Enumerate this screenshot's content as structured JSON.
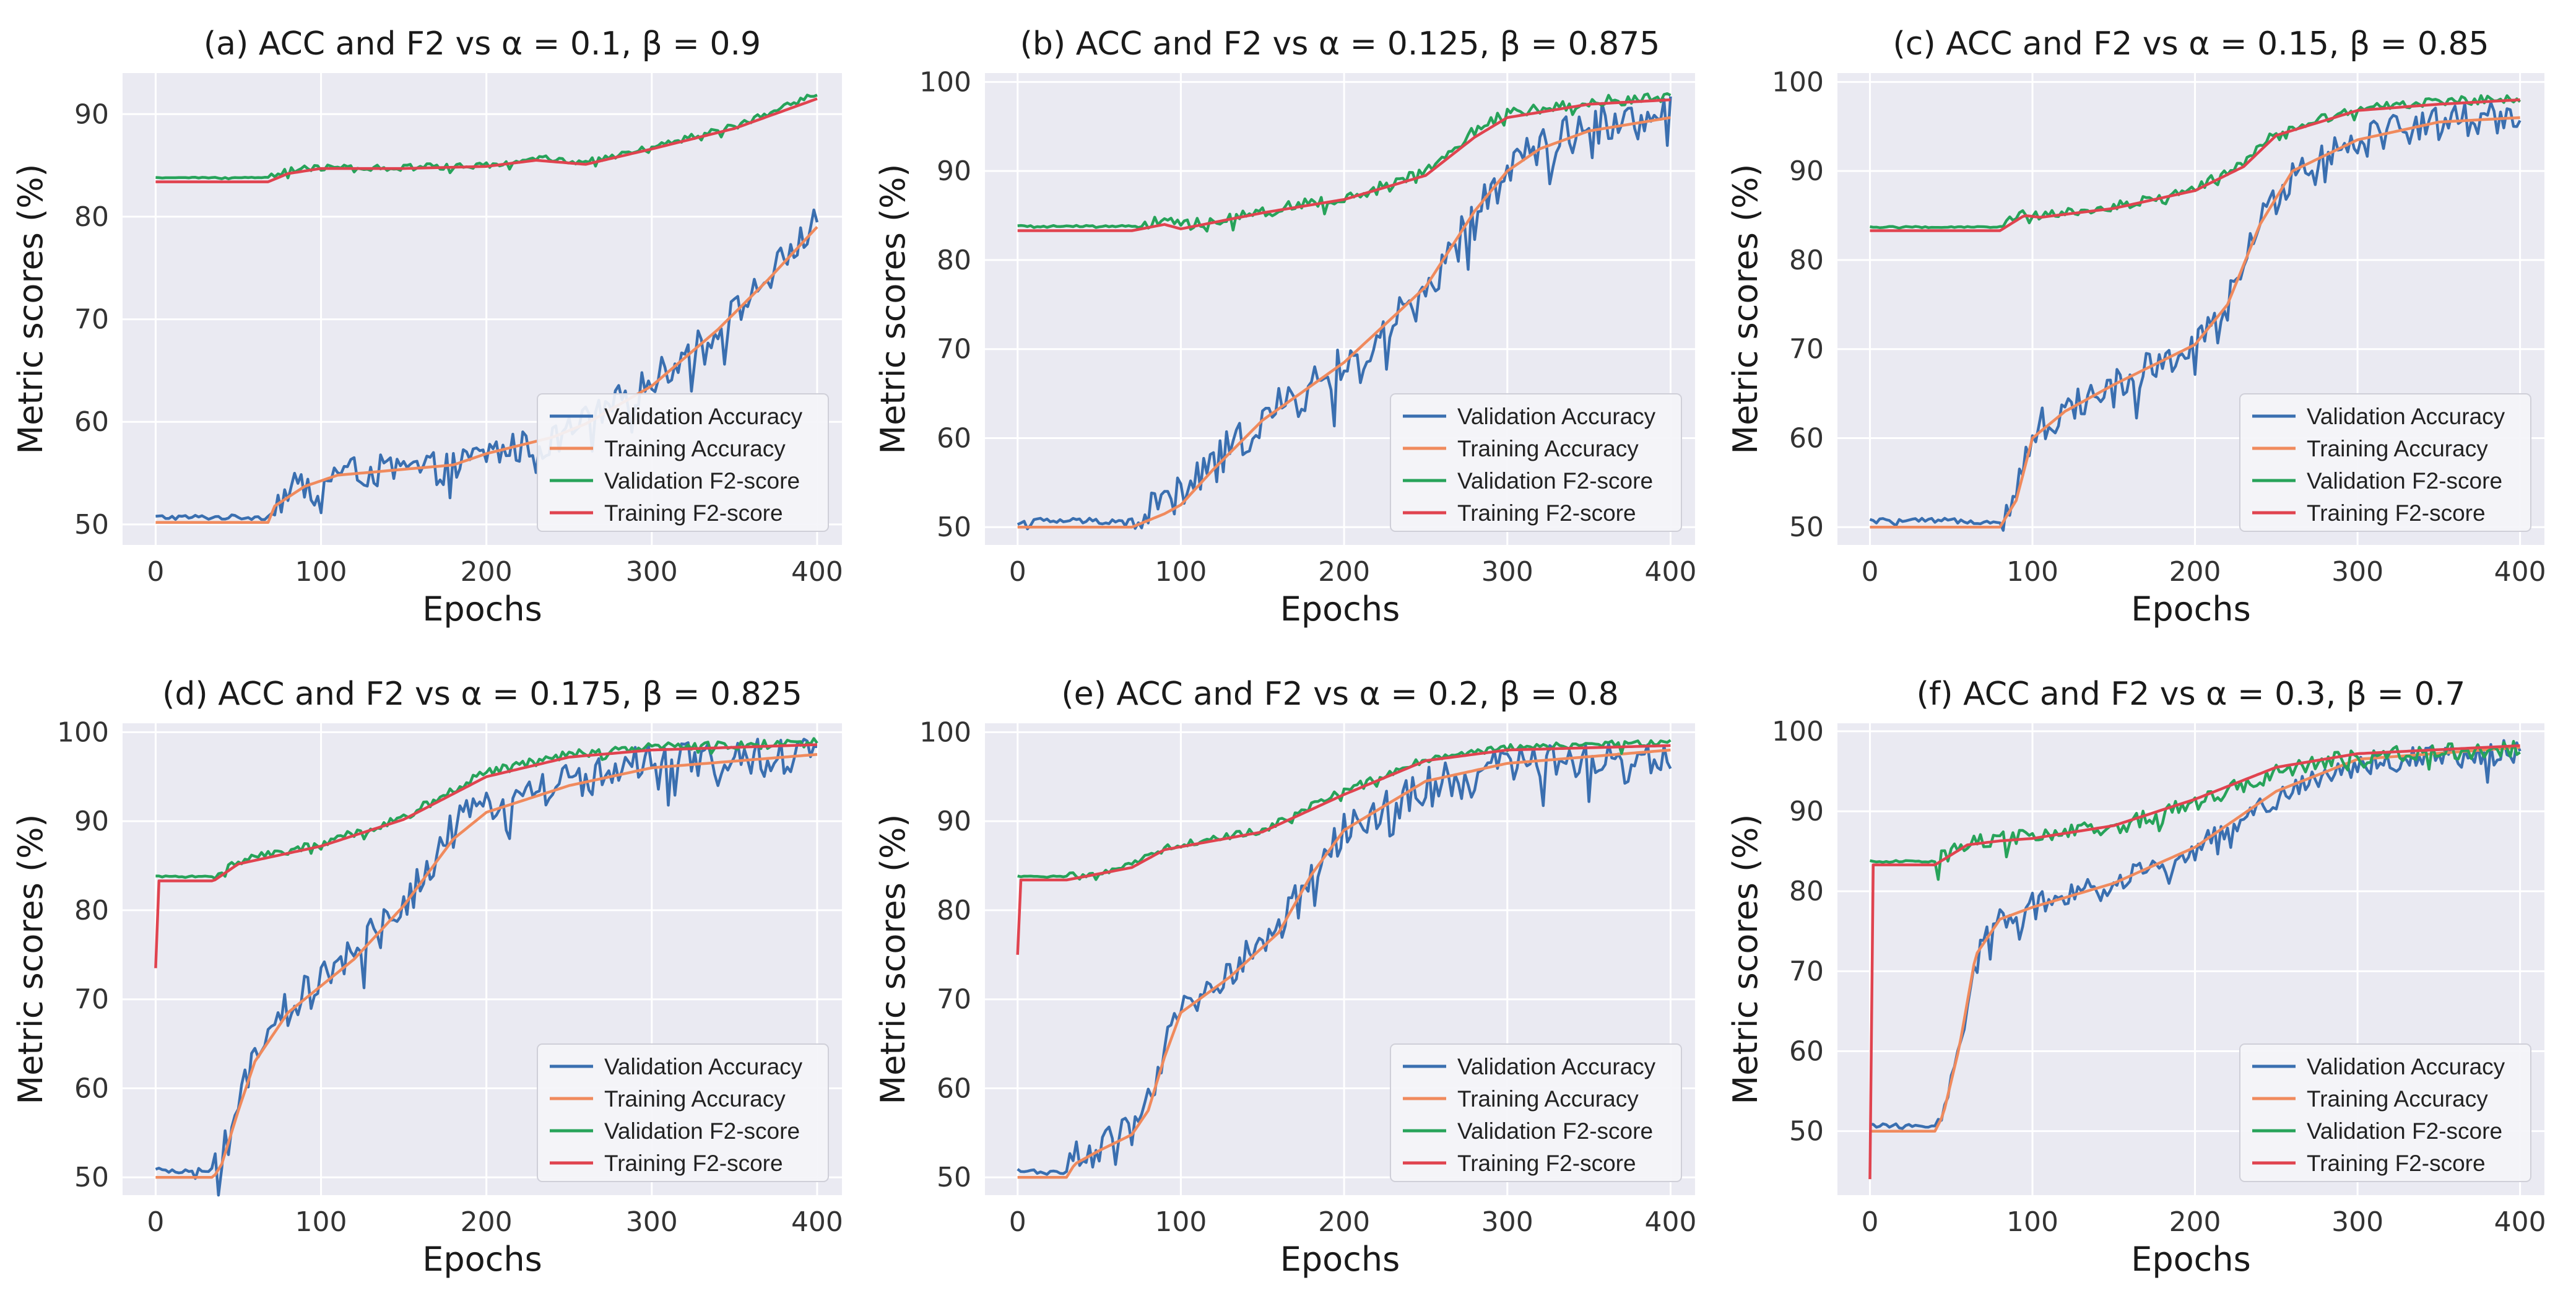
{
  "colors": {
    "val_acc": "#3a6fb0",
    "train_acc": "#f08a5d",
    "val_f2": "#27a35a",
    "train_f2": "#e0434f",
    "panel_bg": "#eaeaf2",
    "grid": "#ffffff"
  },
  "chart_data": [
    {
      "type": "line",
      "title": "(a) ACC and F2 vs α = 0.1, β = 0.9",
      "xlabel": "Epochs",
      "ylabel": "Metric scores (%)",
      "xlim": [
        -20,
        415
      ],
      "ylim": [
        48,
        94
      ],
      "xticks": [
        0,
        100,
        200,
        300,
        400
      ],
      "yticks": [
        50,
        60,
        70,
        80,
        90
      ],
      "grid": true,
      "legend": "lower-right",
      "series": [
        {
          "name": "Validation Accuracy",
          "key": "val_acc",
          "noise": 1.6,
          "x": [
            0,
            68,
            72,
            90,
            110,
            180,
            200,
            240,
            260,
            300,
            340,
            370,
            400
          ],
          "y": [
            50.7,
            50.7,
            52.2,
            54.0,
            55.0,
            55.5,
            57.0,
            58.0,
            60.0,
            64.0,
            69.0,
            74.0,
            79.5
          ]
        },
        {
          "name": "Training Accuracy",
          "key": "train_acc",
          "noise": 0,
          "x": [
            0,
            68,
            72,
            90,
            110,
            180,
            200,
            240,
            260,
            300,
            340,
            370,
            400
          ],
          "y": [
            50.2,
            50.2,
            51.8,
            53.7,
            54.8,
            55.8,
            56.9,
            58.5,
            59.8,
            63.5,
            69.0,
            73.8,
            79.0
          ]
        },
        {
          "name": "Validation F2-score",
          "key": "val_f2",
          "noise": 0.3,
          "x": [
            0,
            68,
            80,
            100,
            150,
            200,
            230,
            260,
            300,
            350,
            400
          ],
          "y": [
            83.8,
            83.8,
            84.5,
            84.8,
            84.8,
            85.0,
            85.8,
            85.3,
            86.8,
            88.8,
            92.0
          ]
        },
        {
          "name": "Training F2-score",
          "key": "train_f2",
          "noise": 0,
          "x": [
            0,
            68,
            80,
            100,
            150,
            200,
            230,
            260,
            300,
            350,
            400
          ],
          "y": [
            83.4,
            83.4,
            84.2,
            84.7,
            84.7,
            84.9,
            85.5,
            85.1,
            86.6,
            88.6,
            91.5
          ]
        }
      ]
    },
    {
      "type": "line",
      "title": "(b) ACC and F2 vs α = 0.125, β = 0.875",
      "xlabel": "Epochs",
      "ylabel": "Metric scores (%)",
      "xlim": [
        -20,
        415
      ],
      "ylim": [
        48,
        101
      ],
      "xticks": [
        0,
        100,
        200,
        300,
        400
      ],
      "yticks": [
        50,
        60,
        70,
        80,
        90,
        100
      ],
      "grid": true,
      "legend": "lower-right",
      "series": [
        {
          "name": "Validation Accuracy",
          "key": "val_acc",
          "noise": 2.4,
          "x": [
            0,
            70,
            90,
            100,
            120,
            150,
            200,
            250,
            280,
            300,
            320,
            350,
            400
          ],
          "y": [
            50.7,
            50.7,
            53.0,
            53.5,
            57.0,
            62.0,
            68.0,
            76.0,
            85.0,
            90.0,
            93.0,
            95.0,
            96.5
          ]
        },
        {
          "name": "Training Accuracy",
          "key": "train_acc",
          "noise": 0,
          "x": [
            0,
            70,
            90,
            100,
            120,
            150,
            200,
            250,
            280,
            300,
            320,
            350,
            400
          ],
          "y": [
            50.0,
            50.0,
            51.5,
            52.5,
            56.5,
            62.0,
            68.5,
            77.0,
            85.5,
            90.0,
            92.5,
            94.5,
            96.0
          ]
        },
        {
          "name": "Validation F2-score",
          "key": "val_f2",
          "noise": 0.6,
          "x": [
            0,
            70,
            90,
            100,
            150,
            200,
            250,
            280,
            300,
            350,
            400
          ],
          "y": [
            83.8,
            83.8,
            84.5,
            83.8,
            85.5,
            87.0,
            90.0,
            94.5,
            96.5,
            97.8,
            98.3
          ]
        },
        {
          "name": "Training F2-score",
          "key": "train_f2",
          "noise": 0,
          "x": [
            0,
            70,
            90,
            100,
            150,
            200,
            250,
            280,
            300,
            350,
            400
          ],
          "y": [
            83.3,
            83.3,
            84.0,
            83.5,
            85.3,
            86.8,
            89.5,
            93.8,
            96.0,
            97.5,
            98.0
          ]
        }
      ]
    },
    {
      "type": "line",
      "title": "(c) ACC and F2 vs α = 0.15, β = 0.85",
      "xlabel": "Epochs",
      "ylabel": "Metric scores (%)",
      "xlim": [
        -20,
        415
      ],
      "ylim": [
        48,
        101
      ],
      "xticks": [
        0,
        100,
        200,
        300,
        400
      ],
      "yticks": [
        50,
        60,
        70,
        80,
        90,
        100
      ],
      "grid": true,
      "legend": "lower-right",
      "series": [
        {
          "name": "Validation Accuracy",
          "key": "val_acc",
          "noise": 2.0,
          "x": [
            0,
            80,
            90,
            100,
            120,
            150,
            200,
            220,
            240,
            260,
            300,
            350,
            400
          ],
          "y": [
            50.7,
            50.7,
            54.0,
            61.0,
            63.0,
            66.0,
            70.0,
            75.0,
            84.0,
            90.0,
            94.0,
            95.5,
            96.5
          ]
        },
        {
          "name": "Training Accuracy",
          "key": "train_acc",
          "noise": 0,
          "x": [
            0,
            80,
            90,
            100,
            120,
            150,
            200,
            220,
            240,
            260,
            300,
            350,
            400
          ],
          "y": [
            50.0,
            50.0,
            53.0,
            60.0,
            63.0,
            66.0,
            70.5,
            75.0,
            84.0,
            90.0,
            93.5,
            95.5,
            96.0
          ]
        },
        {
          "name": "Validation F2-score",
          "key": "val_f2",
          "noise": 0.5,
          "x": [
            0,
            80,
            95,
            105,
            150,
            200,
            230,
            250,
            300,
            350,
            400
          ],
          "y": [
            83.7,
            83.7,
            85.5,
            85.0,
            86.0,
            88.0,
            91.0,
            94.5,
            97.0,
            97.8,
            98.2
          ]
        },
        {
          "name": "Training F2-score",
          "key": "train_f2",
          "noise": 0,
          "x": [
            0,
            80,
            95,
            105,
            150,
            200,
            230,
            250,
            300,
            350,
            400
          ],
          "y": [
            83.3,
            83.3,
            85.0,
            84.8,
            85.8,
            87.8,
            90.5,
            94.0,
            96.8,
            97.5,
            98.0
          ]
        }
      ]
    },
    {
      "type": "line",
      "title": "(d) ACC and F2 vs α = 0.175, β = 0.825",
      "xlabel": "Epochs",
      "ylabel": "Metric scores (%)",
      "xlim": [
        -20,
        415
      ],
      "ylim": [
        48,
        101
      ],
      "xticks": [
        0,
        100,
        200,
        300,
        400
      ],
      "yticks": [
        50,
        60,
        70,
        80,
        90,
        100
      ],
      "grid": true,
      "legend": "lower-right",
      "series": [
        {
          "name": "Validation Accuracy",
          "key": "val_acc",
          "noise": 2.2,
          "x": [
            0,
            35,
            40,
            50,
            60,
            80,
            100,
            120,
            150,
            180,
            200,
            250,
            300,
            400
          ],
          "y": [
            50.7,
            50.7,
            52.0,
            58.0,
            63.0,
            69.0,
            72.0,
            75.0,
            81.0,
            89.0,
            92.0,
            94.5,
            96.5,
            97.5
          ]
        },
        {
          "name": "Training Accuracy",
          "key": "train_acc",
          "noise": 0,
          "x": [
            0,
            35,
            40,
            50,
            60,
            80,
            100,
            120,
            150,
            180,
            200,
            250,
            300,
            400
          ],
          "y": [
            50.0,
            50.0,
            51.5,
            57.5,
            63.0,
            68.5,
            71.5,
            74.5,
            80.5,
            88.0,
            91.0,
            94.0,
            96.0,
            97.5
          ]
        },
        {
          "name": "Validation F2-score",
          "key": "val_f2",
          "noise": 0.5,
          "x": [
            0,
            35,
            50,
            100,
            150,
            200,
            250,
            300,
            400
          ],
          "y": [
            83.8,
            83.8,
            85.5,
            87.5,
            90.5,
            95.5,
            97.5,
            98.3,
            98.8
          ]
        },
        {
          "name": "Training F2-score",
          "key": "train_f2",
          "noise": 0,
          "x": [
            0,
            2,
            35,
            50,
            100,
            150,
            200,
            250,
            300,
            400
          ],
          "y": [
            73.5,
            83.3,
            83.3,
            85.2,
            87.2,
            90.2,
            95.0,
            97.2,
            98.0,
            98.6
          ]
        }
      ]
    },
    {
      "type": "line",
      "title": "(e) ACC and F2 vs α = 0.2, β = 0.8",
      "xlabel": "Epochs",
      "ylabel": "Metric scores (%)",
      "xlim": [
        -20,
        415
      ],
      "ylim": [
        48,
        101
      ],
      "xticks": [
        0,
        100,
        200,
        300,
        400
      ],
      "yticks": [
        50,
        60,
        70,
        80,
        90,
        100
      ],
      "grid": true,
      "legend": "lower-right",
      "series": [
        {
          "name": "Validation Accuracy",
          "key": "val_acc",
          "noise": 2.0,
          "x": [
            0,
            30,
            35,
            50,
            70,
            80,
            90,
            100,
            130,
            160,
            180,
            200,
            250,
            300,
            400
          ],
          "y": [
            50.7,
            50.7,
            52.0,
            53.5,
            55.0,
            58.0,
            64.0,
            69.0,
            73.0,
            78.0,
            84.0,
            89.0,
            94.0,
            96.5,
            97.5
          ]
        },
        {
          "name": "Training Accuracy",
          "key": "train_acc",
          "noise": 0,
          "x": [
            0,
            30,
            35,
            50,
            70,
            80,
            90,
            100,
            130,
            160,
            180,
            200,
            250,
            300,
            400
          ],
          "y": [
            50.0,
            50.0,
            51.5,
            53.0,
            54.8,
            57.5,
            63.5,
            68.5,
            72.5,
            77.5,
            84.0,
            89.0,
            94.5,
            96.5,
            98.0
          ]
        },
        {
          "name": "Validation F2-score",
          "key": "val_f2",
          "noise": 0.4,
          "x": [
            0,
            30,
            70,
            90,
            150,
            200,
            250,
            300,
            400
          ],
          "y": [
            83.8,
            83.8,
            85.0,
            87.0,
            89.0,
            93.5,
            97.0,
            98.3,
            98.8
          ]
        },
        {
          "name": "Training F2-score",
          "key": "train_f2",
          "noise": 0,
          "x": [
            0,
            2,
            30,
            70,
            90,
            150,
            200,
            250,
            300,
            400
          ],
          "y": [
            75.0,
            83.4,
            83.4,
            84.8,
            86.8,
            88.8,
            93.0,
            96.8,
            98.0,
            98.5
          ]
        }
      ]
    },
    {
      "type": "line",
      "title": "(f) ACC and F2 vs α = 0.3, β = 0.7",
      "xlabel": "Epochs",
      "ylabel": "Metric scores (%)",
      "xlim": [
        -20,
        415
      ],
      "ylim": [
        42,
        101
      ],
      "xticks": [
        0,
        100,
        200,
        300,
        400
      ],
      "yticks": [
        50,
        60,
        70,
        80,
        90,
        100
      ],
      "grid": true,
      "legend": "lower-right",
      "series": [
        {
          "name": "Validation Accuracy",
          "key": "val_acc",
          "noise": 1.5,
          "x": [
            0,
            40,
            45,
            55,
            65,
            80,
            100,
            150,
            200,
            250,
            300,
            400
          ],
          "y": [
            50.7,
            50.7,
            52.5,
            60.0,
            72.0,
            76.5,
            78.5,
            81.0,
            85.0,
            92.0,
            96.0,
            97.5
          ]
        },
        {
          "name": "Training Accuracy",
          "key": "train_acc",
          "noise": 0,
          "x": [
            0,
            40,
            45,
            55,
            65,
            80,
            100,
            150,
            200,
            250,
            300,
            400
          ],
          "y": [
            50.0,
            50.0,
            52.0,
            60.5,
            72.0,
            76.5,
            78.0,
            81.0,
            85.5,
            92.5,
            96.5,
            98.0
          ]
        },
        {
          "name": "Validation F2-score",
          "key": "val_f2",
          "noise": 1.0,
          "x": [
            0,
            40,
            60,
            80,
            100,
            150,
            200,
            250,
            300,
            400
          ],
          "y": [
            83.7,
            83.7,
            86.0,
            86.5,
            86.8,
            88.0,
            91.0,
            95.0,
            97.0,
            97.8
          ]
        },
        {
          "name": "Training F2-score",
          "key": "train_f2",
          "noise": 0,
          "x": [
            0,
            2,
            40,
            60,
            80,
            100,
            150,
            200,
            250,
            300,
            400
          ],
          "y": [
            44.0,
            83.3,
            83.3,
            85.8,
            86.3,
            86.6,
            88.2,
            91.5,
            95.5,
            97.2,
            98.2
          ]
        }
      ]
    }
  ]
}
